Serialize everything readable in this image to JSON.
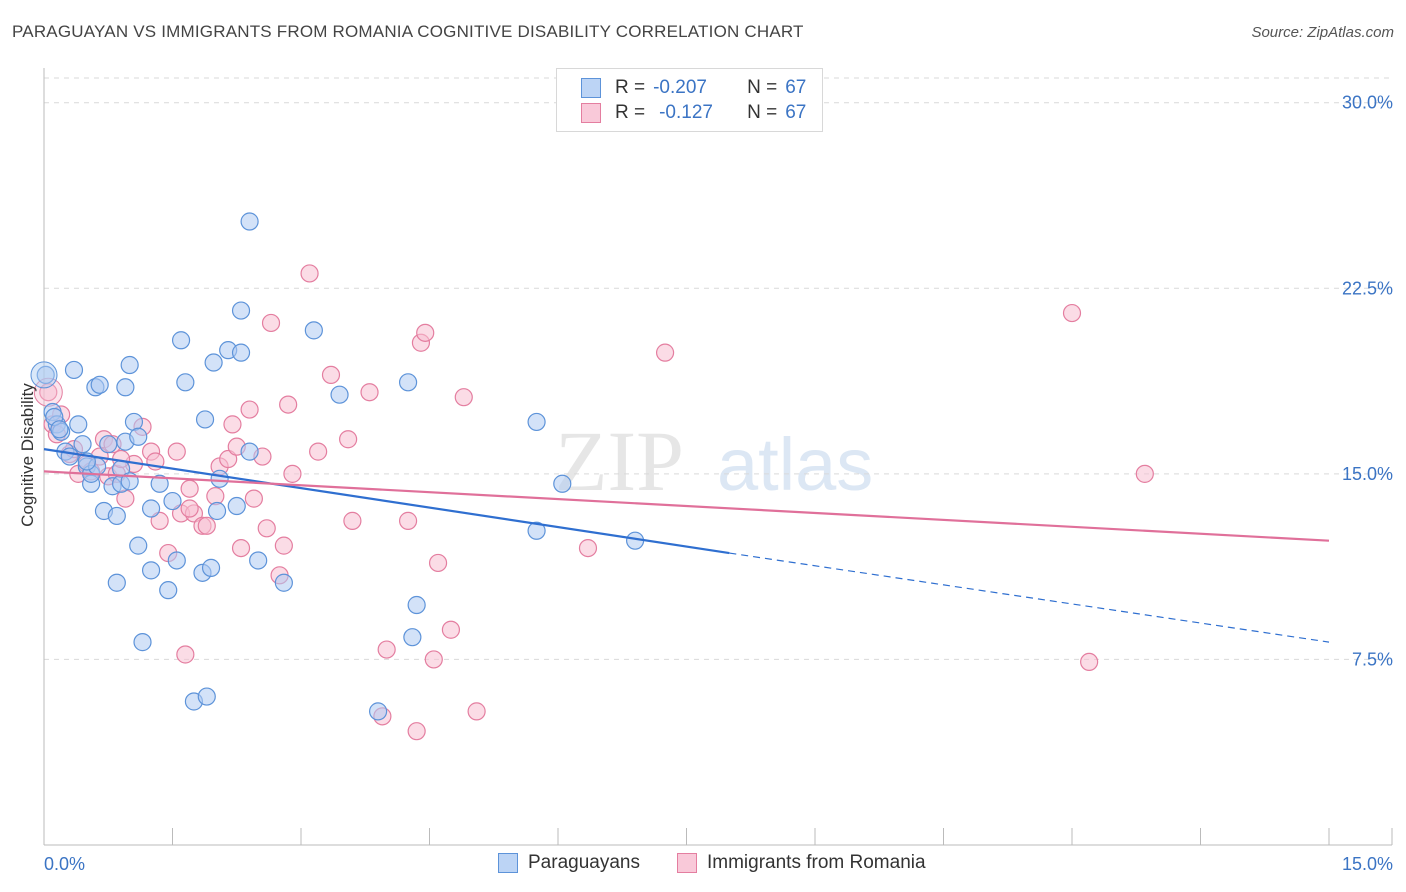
{
  "title": "PARAGUAYAN VS IMMIGRANTS FROM ROMANIA COGNITIVE DISABILITY CORRELATION CHART",
  "source": "Source: ZipAtlas.com",
  "watermark": {
    "zip": "ZIP",
    "atlas": "atlas"
  },
  "legend": {
    "row1": {
      "r_label": "R =",
      "r_value": "-0.207",
      "n_label": "N =",
      "n_value": "67"
    },
    "row2": {
      "r_label": "R =",
      "r_value": "-0.127",
      "n_label": "N =",
      "n_value": "67"
    }
  },
  "colors": {
    "blue_fill": "#aecbf2",
    "blue_stroke": "#5d93d9",
    "blue_line": "#2f6fd0",
    "pink_fill": "#f7bfd2",
    "pink_stroke": "#e47ea0",
    "pink_line": "#e0709a",
    "axis_text": "#3b74c4",
    "grid": "#d9d9d9"
  },
  "chart_data": {
    "type": "scatter",
    "title": "PARAGUAYAN VS IMMIGRANTS FROM ROMANIA COGNITIVE DISABILITY CORRELATION CHART",
    "xlabel": "",
    "ylabel": "Cognitive Disability",
    "xlim": [
      0,
      15
    ],
    "ylim": [
      0,
      31
    ],
    "x_tick_labels": [
      "0.0%",
      "15.0%"
    ],
    "y_ticks": [
      7.5,
      15.0,
      22.5,
      30.0
    ],
    "y_tick_labels": [
      "7.5%",
      "15.0%",
      "22.5%",
      "30.0%"
    ],
    "grid": true,
    "legend_position": "top-center",
    "series": [
      {
        "name": "Paraguayans",
        "color": "#5d93d9",
        "r": -0.207,
        "n": 67,
        "trend": {
          "x": [
            0,
            8.0
          ],
          "y": [
            16.0,
            11.8
          ],
          "dashed_to": [
            15.0,
            8.2
          ]
        },
        "points": [
          [
            0.02,
            19.0
          ],
          [
            0.1,
            17.5
          ],
          [
            0.15,
            17.0
          ],
          [
            0.2,
            16.7
          ],
          [
            0.25,
            15.9
          ],
          [
            0.3,
            15.7
          ],
          [
            0.35,
            19.2
          ],
          [
            0.4,
            17.0
          ],
          [
            0.45,
            16.2
          ],
          [
            0.5,
            15.3
          ],
          [
            0.55,
            14.6
          ],
          [
            0.55,
            15.0
          ],
          [
            0.6,
            18.5
          ],
          [
            0.62,
            15.3
          ],
          [
            0.65,
            18.6
          ],
          [
            0.7,
            13.5
          ],
          [
            0.75,
            16.2
          ],
          [
            0.8,
            14.5
          ],
          [
            0.85,
            10.6
          ],
          [
            0.85,
            13.3
          ],
          [
            0.9,
            15.2
          ],
          [
            0.9,
            14.6
          ],
          [
            0.95,
            16.3
          ],
          [
            0.95,
            18.5
          ],
          [
            1.0,
            14.7
          ],
          [
            1.0,
            19.4
          ],
          [
            1.05,
            17.1
          ],
          [
            1.1,
            16.5
          ],
          [
            1.1,
            12.1
          ],
          [
            1.15,
            8.2
          ],
          [
            1.25,
            13.6
          ],
          [
            1.25,
            11.1
          ],
          [
            1.35,
            14.6
          ],
          [
            1.45,
            10.3
          ],
          [
            1.5,
            13.9
          ],
          [
            1.55,
            11.5
          ],
          [
            1.6,
            20.4
          ],
          [
            1.65,
            18.7
          ],
          [
            1.75,
            5.8
          ],
          [
            1.85,
            11.0
          ],
          [
            1.88,
            17.2
          ],
          [
            1.9,
            6.0
          ],
          [
            1.95,
            11.2
          ],
          [
            1.98,
            19.5
          ],
          [
            2.02,
            13.5
          ],
          [
            2.05,
            14.8
          ],
          [
            2.15,
            20.0
          ],
          [
            2.25,
            13.7
          ],
          [
            2.3,
            19.9
          ],
          [
            2.3,
            21.6
          ],
          [
            2.4,
            25.2
          ],
          [
            2.4,
            15.9
          ],
          [
            2.5,
            11.5
          ],
          [
            2.8,
            10.6
          ],
          [
            3.15,
            20.8
          ],
          [
            3.45,
            18.2
          ],
          [
            3.9,
            5.4
          ],
          [
            4.25,
            18.7
          ],
          [
            4.3,
            8.4
          ],
          [
            4.35,
            9.7
          ],
          [
            5.75,
            17.1
          ],
          [
            5.75,
            12.7
          ],
          [
            6.05,
            14.6
          ],
          [
            6.9,
            12.3
          ],
          [
            0.12,
            17.3
          ],
          [
            0.18,
            16.8
          ],
          [
            0.5,
            15.5
          ]
        ]
      },
      {
        "name": "Immigrants from Romania",
        "color": "#e47ea0",
        "r": -0.127,
        "n": 67,
        "trend": {
          "x": [
            0,
            15.0
          ],
          "y": [
            15.1,
            12.3
          ]
        },
        "points": [
          [
            0.05,
            18.3
          ],
          [
            0.1,
            17.0
          ],
          [
            0.15,
            16.6
          ],
          [
            0.2,
            17.4
          ],
          [
            0.3,
            15.8
          ],
          [
            0.4,
            15.0
          ],
          [
            0.5,
            15.4
          ],
          [
            0.55,
            15.1
          ],
          [
            0.65,
            15.7
          ],
          [
            0.7,
            16.4
          ],
          [
            0.75,
            14.9
          ],
          [
            0.8,
            16.2
          ],
          [
            0.85,
            15.0
          ],
          [
            0.95,
            14.0
          ],
          [
            1.05,
            15.4
          ],
          [
            1.15,
            16.9
          ],
          [
            1.25,
            15.9
          ],
          [
            1.3,
            15.5
          ],
          [
            1.35,
            13.1
          ],
          [
            1.45,
            11.8
          ],
          [
            1.55,
            15.9
          ],
          [
            1.6,
            13.4
          ],
          [
            1.65,
            7.7
          ],
          [
            1.7,
            14.4
          ],
          [
            1.75,
            13.4
          ],
          [
            1.85,
            12.9
          ],
          [
            1.9,
            12.9
          ],
          [
            2.0,
            14.1
          ],
          [
            2.05,
            15.3
          ],
          [
            2.15,
            15.6
          ],
          [
            2.2,
            17.0
          ],
          [
            2.25,
            16.1
          ],
          [
            2.3,
            12.0
          ],
          [
            2.4,
            17.6
          ],
          [
            2.45,
            14.0
          ],
          [
            2.55,
            15.7
          ],
          [
            2.6,
            12.8
          ],
          [
            2.65,
            21.1
          ],
          [
            2.75,
            10.9
          ],
          [
            2.85,
            17.8
          ],
          [
            2.9,
            15.0
          ],
          [
            3.1,
            23.1
          ],
          [
            3.2,
            15.9
          ],
          [
            3.35,
            19.0
          ],
          [
            3.55,
            16.4
          ],
          [
            3.6,
            13.1
          ],
          [
            3.8,
            18.3
          ],
          [
            3.95,
            5.2
          ],
          [
            4.0,
            7.9
          ],
          [
            4.25,
            13.1
          ],
          [
            4.35,
            4.6
          ],
          [
            4.4,
            20.3
          ],
          [
            4.45,
            20.7
          ],
          [
            4.55,
            7.5
          ],
          [
            4.6,
            11.4
          ],
          [
            4.75,
            8.7
          ],
          [
            4.9,
            18.1
          ],
          [
            5.05,
            5.4
          ],
          [
            6.35,
            12.0
          ],
          [
            7.25,
            19.9
          ],
          [
            12.0,
            21.5
          ],
          [
            12.2,
            7.4
          ],
          [
            12.85,
            15.0
          ],
          [
            0.35,
            16.0
          ],
          [
            0.9,
            15.6
          ],
          [
            1.7,
            13.6
          ],
          [
            2.8,
            12.1
          ]
        ]
      }
    ]
  }
}
